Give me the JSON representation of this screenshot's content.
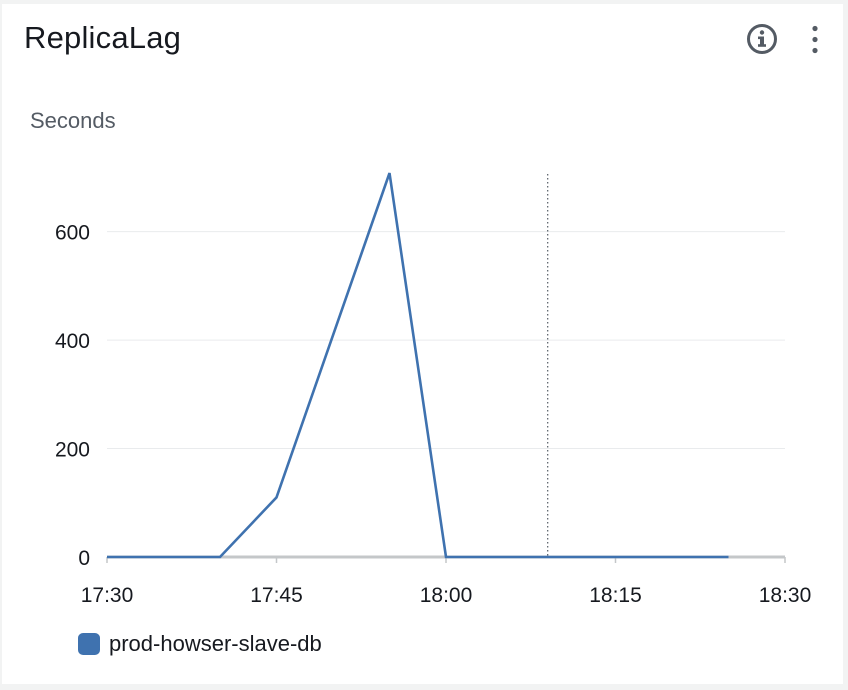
{
  "widget": {
    "title": "ReplicaLag",
    "unit_label": "Seconds",
    "info_icon": "info-circle-icon",
    "menu_icon": "more-vertical-icon"
  },
  "colors": {
    "series": "#3f72af",
    "grid": "#e9ebed",
    "baseline": "#c4c7c9",
    "text": "#16191f",
    "muted": "#545b64",
    "icon": "#545b64"
  },
  "chart_data": {
    "type": "line",
    "xlabel": "",
    "ylabel": "Seconds",
    "x_ticks": [
      "17:30",
      "17:45",
      "18:00",
      "18:15",
      "18:30"
    ],
    "y_ticks": [
      0,
      200,
      400,
      600
    ],
    "ylim": [
      0,
      710
    ],
    "xlim_minutes": [
      0,
      60
    ],
    "grid": true,
    "legend_position": "bottom-left",
    "cursor_marker_time": "18:09",
    "series": [
      {
        "name": "prod-howser-slave-db",
        "points": [
          {
            "t": "17:30",
            "v": 0
          },
          {
            "t": "17:40",
            "v": 0
          },
          {
            "t": "17:45",
            "v": 110
          },
          {
            "t": "17:55",
            "v": 708
          },
          {
            "t": "18:00",
            "v": 0
          },
          {
            "t": "18:05",
            "v": 0
          },
          {
            "t": "18:10",
            "v": 0
          },
          {
            "t": "18:15",
            "v": 0
          },
          {
            "t": "18:20",
            "v": 0
          },
          {
            "t": "18:25",
            "v": 0
          }
        ]
      }
    ]
  },
  "legend": {
    "items": [
      {
        "label": "prod-howser-slave-db"
      }
    ]
  }
}
